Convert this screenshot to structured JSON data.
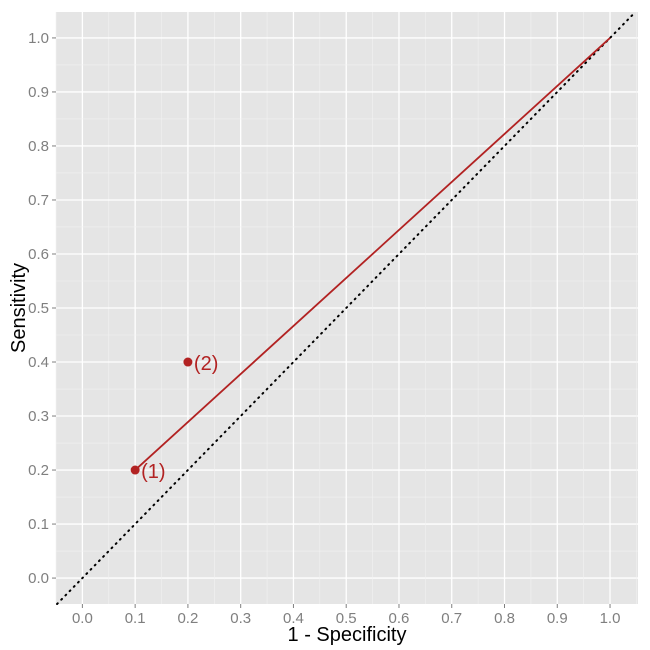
{
  "chart_data": {
    "type": "scatter",
    "title": "",
    "xlabel": "1 - Specificity",
    "ylabel": "Sensitivity",
    "xlim": [
      -0.05,
      1.053
    ],
    "ylim": [
      -0.048,
      1.048
    ],
    "xticks": [
      "0.0",
      "0.1",
      "0.2",
      "0.3",
      "0.4",
      "0.5",
      "0.6",
      "0.7",
      "0.8",
      "0.9",
      "1.0"
    ],
    "yticks": [
      "0.0",
      "0.1",
      "0.2",
      "0.3",
      "0.4",
      "0.5",
      "0.6",
      "0.7",
      "0.8",
      "0.9",
      "1.0"
    ],
    "grid": true,
    "points": [
      {
        "x": 0.1,
        "y": 0.2,
        "label": "(1)"
      },
      {
        "x": 0.2,
        "y": 0.4,
        "label": "(2)"
      }
    ],
    "line": {
      "x": [
        0.1,
        1.0
      ],
      "y": [
        0.2,
        1.0
      ]
    },
    "reference_line": {
      "type": "dotted",
      "slope": 1,
      "intercept": 0
    },
    "colors": {
      "series": "#B22222",
      "panel": "#E5E5E5",
      "grid": "#FFFFFF",
      "reference": "#000000"
    }
  }
}
